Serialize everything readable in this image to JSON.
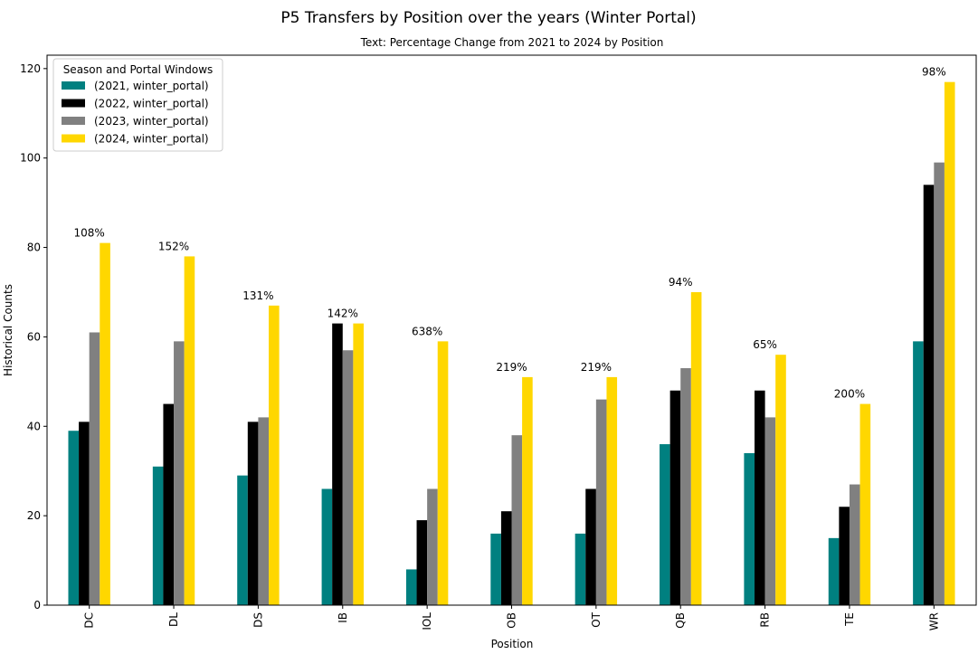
{
  "chart_data": {
    "type": "bar",
    "title": "P5 Transfers by Position over the years (Winter Portal)",
    "subtitle": "Text: Percentage Change from 2021 to 2024 by Position",
    "xlabel": "Position",
    "ylabel": "Historical Counts",
    "ylim": [
      0,
      123
    ],
    "yticks": [
      0,
      20,
      40,
      60,
      80,
      100,
      120
    ],
    "grid": false,
    "legend_title": "Season and Portal Windows",
    "legend_position": "top-left",
    "categories": [
      "DC",
      "DL",
      "DS",
      "IB",
      "IOL",
      "OB",
      "OT",
      "QB",
      "RB",
      "TE",
      "WR"
    ],
    "series": [
      {
        "name": "(2021, winter_portal)",
        "color": "#008080",
        "values": [
          39,
          31,
          29,
          26,
          8,
          16,
          16,
          36,
          34,
          15,
          59
        ]
      },
      {
        "name": "(2022, winter_portal)",
        "color": "#000000",
        "values": [
          41,
          45,
          41,
          63,
          19,
          21,
          26,
          48,
          48,
          22,
          94
        ]
      },
      {
        "name": "(2023, winter_portal)",
        "color": "#808080",
        "values": [
          61,
          59,
          42,
          57,
          26,
          38,
          46,
          53,
          42,
          27,
          99
        ]
      },
      {
        "name": "(2024, winter_portal)",
        "color": "#FFD700",
        "values": [
          81,
          78,
          67,
          63,
          59,
          51,
          51,
          70,
          56,
          45,
          117
        ]
      }
    ],
    "annotations": [
      "108%",
      "152%",
      "131%",
      "142%",
      "638%",
      "219%",
      "219%",
      "94%",
      "65%",
      "200%",
      "98%"
    ]
  }
}
